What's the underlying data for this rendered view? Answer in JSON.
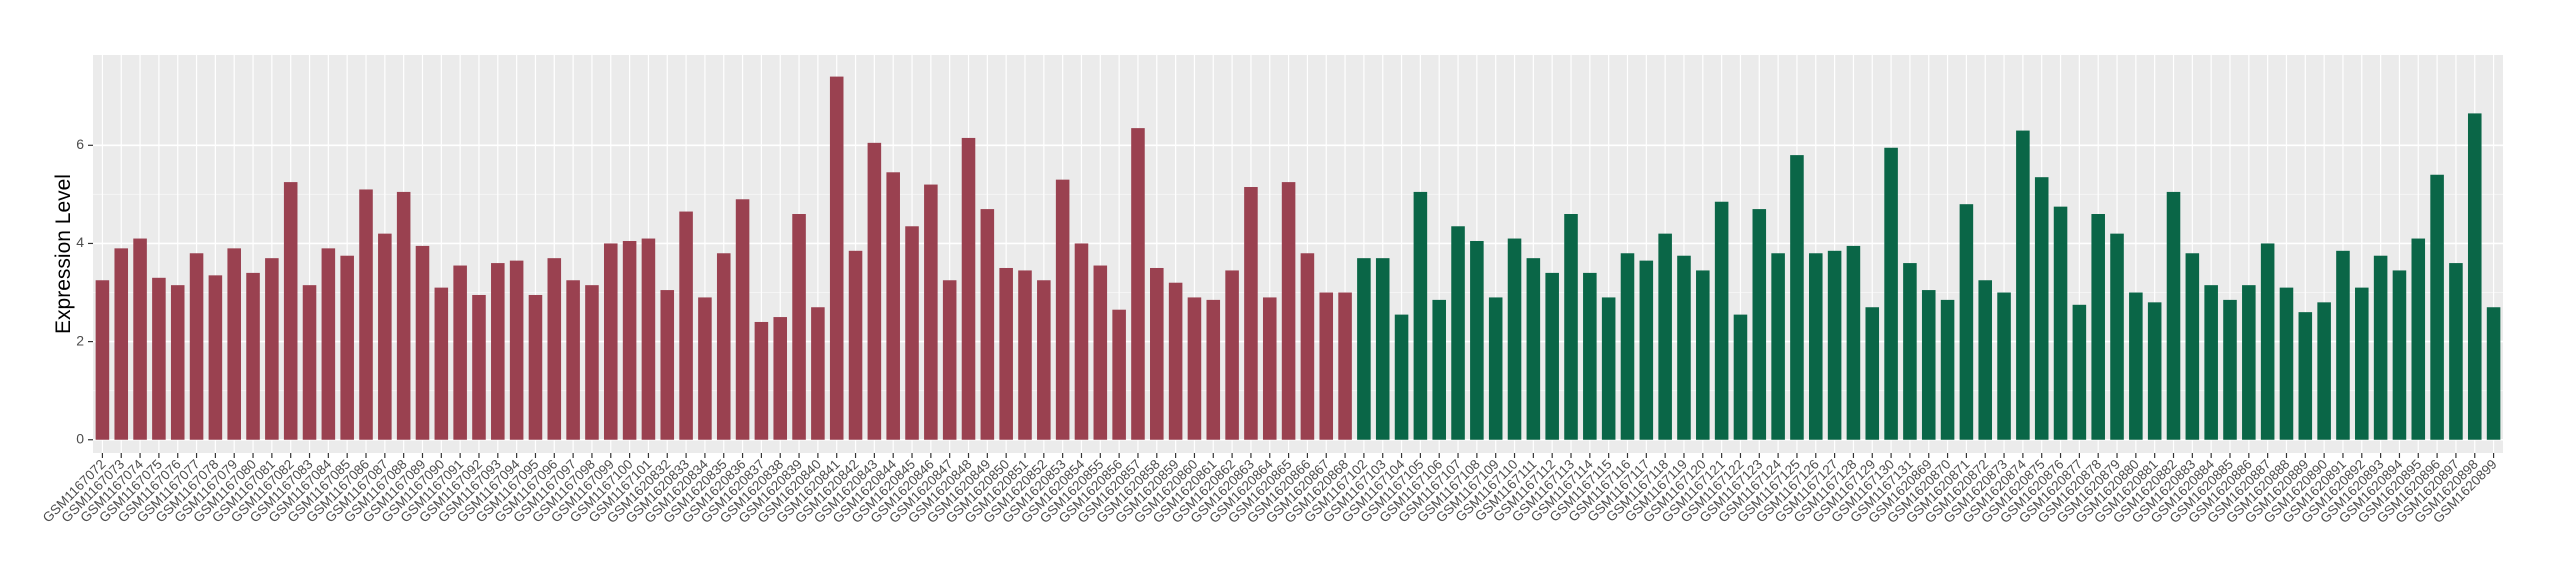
{
  "chart_data": {
    "type": "bar",
    "ylabel": "Expression Level",
    "categories": [
      "GSM1167072",
      "GSM1167073",
      "GSM1167074",
      "GSM1167075",
      "GSM1167076",
      "GSM1167077",
      "GSM1167078",
      "GSM1167079",
      "GSM1167080",
      "GSM1167081",
      "GSM1167082",
      "GSM1167083",
      "GSM1167084",
      "GSM1167085",
      "GSM1167086",
      "GSM1167087",
      "GSM1167088",
      "GSM1167089",
      "GSM1167090",
      "GSM1167091",
      "GSM1167092",
      "GSM1167093",
      "GSM1167094",
      "GSM1167095",
      "GSM1167096",
      "GSM1167097",
      "GSM1167098",
      "GSM1167099",
      "GSM1167100",
      "GSM1167101",
      "GSM1620832",
      "GSM1620833",
      "GSM1620834",
      "GSM1620835",
      "GSM1620836",
      "GSM1620837",
      "GSM1620838",
      "GSM1620839",
      "GSM1620840",
      "GSM1620841",
      "GSM1620842",
      "GSM1620843",
      "GSM1620844",
      "GSM1620845",
      "GSM1620846",
      "GSM1620847",
      "GSM1620848",
      "GSM1620849",
      "GSM1620850",
      "GSM1620851",
      "GSM1620852",
      "GSM1620853",
      "GSM1620854",
      "GSM1620855",
      "GSM1620856",
      "GSM1620857",
      "GSM1620858",
      "GSM1620859",
      "GSM1620860",
      "GSM1620861",
      "GSM1620862",
      "GSM1620863",
      "GSM1620864",
      "GSM1620865",
      "GSM1620866",
      "GSM1620867",
      "GSM1620868",
      "GSM1167102",
      "GSM1167103",
      "GSM1167104",
      "GSM1167105",
      "GSM1167106",
      "GSM1167107",
      "GSM1167108",
      "GSM1167109",
      "GSM1167110",
      "GSM1167111",
      "GSM1167112",
      "GSM1167113",
      "GSM1167114",
      "GSM1167115",
      "GSM1167116",
      "GSM1167117",
      "GSM1167118",
      "GSM1167119",
      "GSM1167120",
      "GSM1167121",
      "GSM1167122",
      "GSM1167123",
      "GSM1167124",
      "GSM1167125",
      "GSM1167126",
      "GSM1167127",
      "GSM1167128",
      "GSM1167129",
      "GSM1167130",
      "GSM1167131",
      "GSM1620869",
      "GSM1620870",
      "GSM1620871",
      "GSM1620872",
      "GSM1620873",
      "GSM1620874",
      "GSM1620875",
      "GSM1620876",
      "GSM1620877",
      "GSM1620878",
      "GSM1620879",
      "GSM1620880",
      "GSM1620881",
      "GSM1620882",
      "GSM1620883",
      "GSM1620884",
      "GSM1620885",
      "GSM1620886",
      "GSM1620887",
      "GSM1620888",
      "GSM1620889",
      "GSM1620890",
      "GSM1620891",
      "GSM1620892",
      "GSM1620893",
      "GSM1620894",
      "GSM1620895",
      "GSM1620896",
      "GSM1620897",
      "GSM1620898",
      "GSM1620899"
    ],
    "values": [
      3.25,
      3.9,
      4.1,
      3.3,
      3.15,
      3.8,
      3.35,
      3.9,
      3.4,
      3.7,
      5.25,
      3.15,
      3.9,
      3.75,
      5.1,
      4.2,
      5.05,
      3.95,
      3.1,
      3.55,
      2.95,
      3.6,
      3.65,
      2.95,
      3.7,
      3.25,
      3.15,
      4.0,
      4.05,
      4.1,
      3.05,
      4.65,
      2.9,
      3.8,
      4.9,
      2.4,
      2.5,
      4.6,
      2.7,
      7.4,
      3.85,
      6.05,
      5.45,
      4.35,
      5.2,
      3.25,
      6.15,
      4.7,
      3.5,
      3.45,
      3.25,
      5.3,
      4.0,
      3.55,
      2.65,
      6.35,
      3.5,
      3.2,
      2.9,
      2.85,
      3.45,
      5.15,
      2.9,
      5.25,
      3.8,
      3.0,
      3.0,
      3.7,
      3.7,
      2.55,
      5.05,
      2.85,
      4.35,
      4.05,
      2.9,
      4.1,
      3.7,
      3.4,
      4.6,
      3.4,
      2.9,
      3.8,
      3.65,
      4.2,
      3.75,
      3.45,
      4.85,
      2.55,
      4.7,
      3.8,
      5.8,
      3.8,
      3.85,
      3.95,
      2.7,
      5.95,
      3.6,
      3.05,
      2.85,
      4.8,
      3.25,
      3.0,
      6.3,
      5.35,
      4.75,
      2.75,
      4.6,
      4.2,
      3.0,
      2.8,
      5.05,
      3.8,
      3.15,
      2.85,
      3.15,
      4.0,
      3.1,
      2.6,
      2.8,
      3.85,
      3.1,
      3.75,
      3.45,
      4.1,
      5.4,
      3.6,
      6.65,
      2.7
    ],
    "colors": [
      "#9a4150",
      "#9a4150",
      "#9a4150",
      "#9a4150",
      "#9a4150",
      "#9a4150",
      "#9a4150",
      "#9a4150",
      "#9a4150",
      "#9a4150",
      "#9a4150",
      "#9a4150",
      "#9a4150",
      "#9a4150",
      "#9a4150",
      "#9a4150",
      "#9a4150",
      "#9a4150",
      "#9a4150",
      "#9a4150",
      "#9a4150",
      "#9a4150",
      "#9a4150",
      "#9a4150",
      "#9a4150",
      "#9a4150",
      "#9a4150",
      "#9a4150",
      "#9a4150",
      "#9a4150",
      "#9a4150",
      "#9a4150",
      "#9a4150",
      "#9a4150",
      "#9a4150",
      "#9a4150",
      "#9a4150",
      "#9a4150",
      "#9a4150",
      "#9a4150",
      "#9a4150",
      "#9a4150",
      "#9a4150",
      "#9a4150",
      "#9a4150",
      "#9a4150",
      "#9a4150",
      "#9a4150",
      "#9a4150",
      "#9a4150",
      "#9a4150",
      "#9a4150",
      "#9a4150",
      "#9a4150",
      "#9a4150",
      "#9a4150",
      "#9a4150",
      "#9a4150",
      "#9a4150",
      "#9a4150",
      "#9a4150",
      "#9a4150",
      "#9a4150",
      "#9a4150",
      "#9a4150",
      "#9a4150",
      "#9a4150",
      "#0a6647",
      "#0a6647",
      "#0a6647",
      "#0a6647",
      "#0a6647",
      "#0a6647",
      "#0a6647",
      "#0a6647",
      "#0a6647",
      "#0a6647",
      "#0a6647",
      "#0a6647",
      "#0a6647",
      "#0a6647",
      "#0a6647",
      "#0a6647",
      "#0a6647",
      "#0a6647",
      "#0a6647",
      "#0a6647",
      "#0a6647",
      "#0a6647",
      "#0a6647",
      "#0a6647",
      "#0a6647",
      "#0a6647",
      "#0a6647",
      "#0a6647",
      "#0a6647",
      "#0a6647",
      "#0a6647",
      "#0a6647",
      "#0a6647",
      "#0a6647",
      "#0a6647",
      "#0a6647",
      "#0a6647",
      "#0a6647",
      "#0a6647",
      "#0a6647",
      "#0a6647",
      "#0a6647",
      "#0a6647",
      "#0a6647",
      "#0a6647",
      "#0a6647",
      "#0a6647",
      "#0a6647",
      "#0a6647",
      "#0a6647",
      "#0a6647",
      "#0a6647",
      "#0a6647",
      "#0a6647",
      "#0a6647",
      "#0a6647",
      "#0a6647",
      "#0a6647",
      "#0a6647",
      "#0a6647",
      "#0a6647"
    ],
    "ylim": [
      -0.27,
      7.84
    ],
    "yticks": [
      0,
      2,
      4,
      6
    ],
    "grid": true
  }
}
